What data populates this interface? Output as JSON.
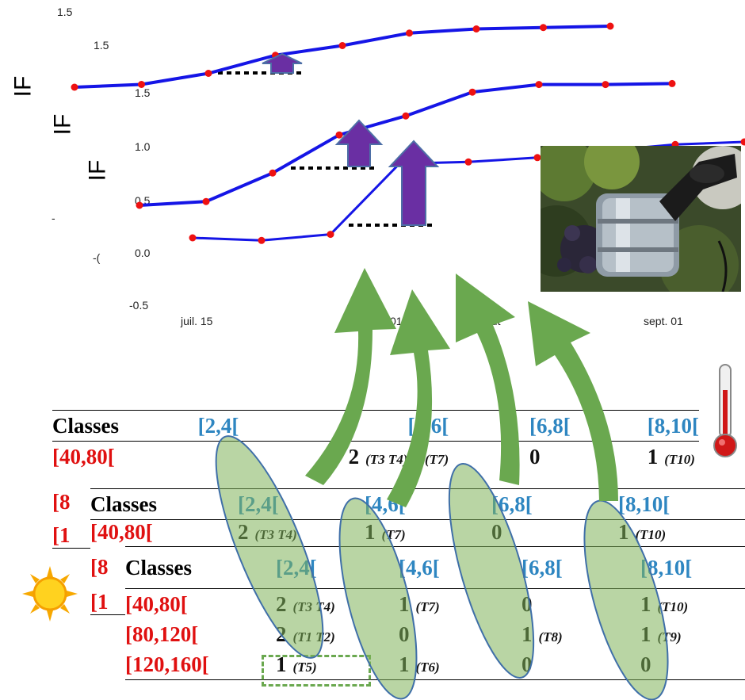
{
  "axis": {
    "y_label": "IF",
    "y_ticks": [
      "1.5",
      "1.5",
      "1.5",
      "1.0",
      "0.5",
      "0.0",
      "-0.5",
      "-",
      "-("
    ],
    "x_ticks": [
      "juil. 15",
      "01",
      "out",
      "sept. 01"
    ],
    "x_label_fragment": "e"
  },
  "chart_data": {
    "type": "line",
    "ylabel": "IF",
    "series": [
      {
        "values": [
          1.55,
          1.57,
          1.65,
          1.78,
          1.85,
          1.94,
          1.97,
          1.98,
          1.99
        ]
      },
      {
        "values": [
          0.48,
          0.52,
          0.82,
          1.22,
          1.42,
          1.67,
          1.75,
          1.75,
          1.76
        ]
      },
      {
        "values": [
          0.18,
          0.15,
          0.22,
          1.03,
          1.05,
          1.1,
          1.18,
          1.25,
          1.28
        ]
      }
    ],
    "colors": {
      "line": "#1515e6",
      "point": "#ee1111",
      "arrow_purple": "#6a2fa3",
      "arrow_green": "#6aa84f",
      "dotted": "#000000"
    }
  },
  "tables": [
    {
      "header": [
        "Classes",
        "[2,4[",
        "[4,6[",
        "[6,8[",
        "[8,10["
      ],
      "rows": [
        {
          "label": "[40,80[",
          "cells": [
            {
              "n": "2",
              "t": "(T3 T4)"
            },
            {
              "n": "1",
              "t": "(T7)"
            },
            {
              "n": "0",
              "t": ""
            },
            {
              "n": "1",
              "t": "(T10)"
            }
          ]
        }
      ],
      "side_labels": [
        "[8",
        "[1"
      ]
    },
    {
      "header": [
        "Classes",
        "[2,4[",
        "[4,6[",
        "[6,8[",
        "[8,10["
      ],
      "rows": [
        {
          "label": "[40,80[",
          "cells": [
            {
              "n": "2",
              "t": "(T3 T4)"
            },
            {
              "n": "1",
              "t": "(T7)"
            },
            {
              "n": "0",
              "t": ""
            },
            {
              "n": "1",
              "t": "(T10)"
            }
          ]
        }
      ],
      "side_labels": [
        "[8",
        "[1"
      ]
    },
    {
      "header": [
        "Classes",
        "[2,4[",
        "[4,6[",
        "[6,8[",
        "[8,10["
      ],
      "rows": [
        {
          "label": "[40,80[",
          "cells": [
            {
              "n": "2",
              "t": "(T3 T4)"
            },
            {
              "n": "1",
              "t": "(T7)"
            },
            {
              "n": "0",
              "t": ""
            },
            {
              "n": "1",
              "t": "(T10)"
            }
          ]
        },
        {
          "label": "[80,120[",
          "cells": [
            {
              "n": "2",
              "t": "(T1 T2)"
            },
            {
              "n": "0",
              "t": ""
            },
            {
              "n": "1",
              "t": "(T8)"
            },
            {
              "n": "1",
              "t": "(T9)"
            }
          ]
        },
        {
          "label": "[120,160[",
          "cells": [
            {
              "n": "1",
              "t": "(T5)"
            },
            {
              "n": "1",
              "t": "(T6)"
            },
            {
              "n": "0",
              "t": ""
            },
            {
              "n": "0",
              "t": ""
            }
          ]
        }
      ]
    }
  ],
  "icons": {
    "photo": "grape-harvest-sensor-photo",
    "thermometer": "thermometer-icon",
    "sun": "sun-icon"
  }
}
